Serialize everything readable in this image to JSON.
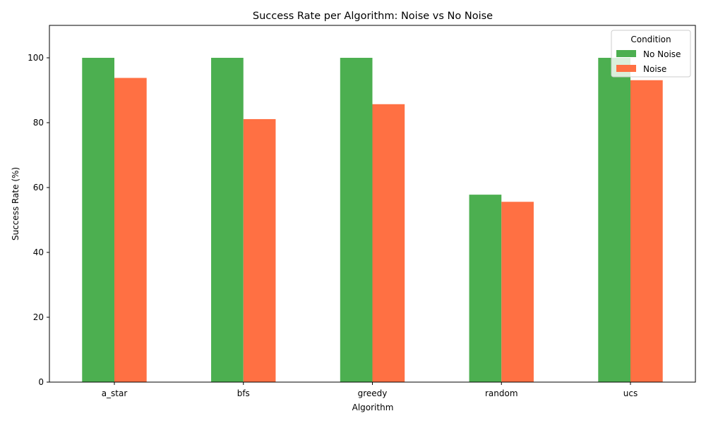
{
  "chart_data": {
    "type": "bar",
    "title": "Success Rate per Algorithm: Noise vs No Noise",
    "xlabel": "Algorithm",
    "ylabel": "Success Rate (%)",
    "categories": [
      "a_star",
      "bfs",
      "greedy",
      "random",
      "ucs"
    ],
    "series": [
      {
        "name": "No Noise",
        "color": "#4caf50",
        "values": [
          100,
          100,
          100,
          57.8,
          100
        ]
      },
      {
        "name": "Noise",
        "color": "#ff7043",
        "values": [
          93.8,
          81.1,
          85.7,
          55.6,
          93.1
        ]
      }
    ],
    "ylim": [
      0,
      110
    ],
    "yticks": [
      0,
      20,
      40,
      60,
      80,
      100
    ],
    "grid": false,
    "legend": {
      "title": "Condition",
      "position": "top-right"
    }
  }
}
